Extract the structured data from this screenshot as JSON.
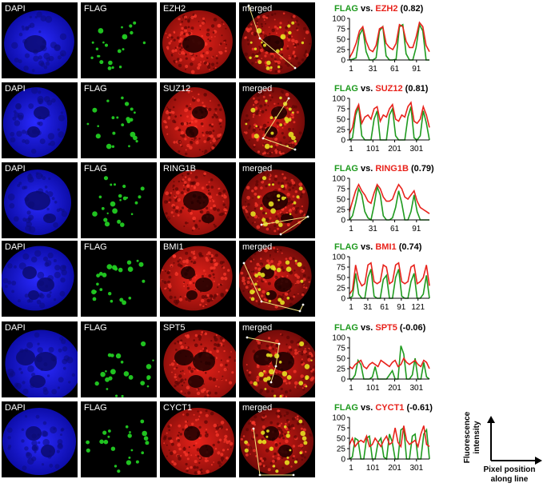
{
  "colors": {
    "dapi": "#1616ee",
    "flag": "#22cc22",
    "red": "#e21a12",
    "flag_title": "#1e9a1e",
    "red_title": "#e8231c",
    "merged_spot": "#e6e020"
  },
  "rows": [
    {
      "dapi": "DAPI",
      "flag": "FLAG",
      "marker": "EZH2",
      "merged": "merged",
      "title_flag": "FLAG",
      "title_vs": " vs. ",
      "title_marker": "EZH2",
      "title_corr": " (0.82)",
      "xticks": [
        "1",
        "31",
        "61",
        "91"
      ],
      "yticks": [
        "0",
        "25",
        "50",
        "75",
        "100"
      ]
    },
    {
      "dapi": "DAPI",
      "flag": "FLAG",
      "marker": "SUZ12",
      "merged": "merged",
      "title_flag": "FLAG",
      "title_vs": " vs. ",
      "title_marker": "SUZ12",
      "title_corr": " (0.81)",
      "xticks": [
        "1",
        "101",
        "201",
        "301"
      ],
      "yticks": [
        "0",
        "25",
        "50",
        "75",
        "100"
      ]
    },
    {
      "dapi": "DAPI",
      "flag": "FLAG",
      "marker": "RING1B",
      "merged": "merged",
      "title_flag": "FLAG",
      "title_vs": " vs. ",
      "title_marker": "RING1B",
      "title_corr": " (0.79)",
      "xticks": [
        "1",
        "31",
        "61",
        "91"
      ],
      "yticks": [
        "0",
        "25",
        "50",
        "75",
        "100"
      ]
    },
    {
      "dapi": "DAPI",
      "flag": "FLAG",
      "marker": "BMI1",
      "merged": "merged",
      "title_flag": "FLAG",
      "title_vs": " vs. ",
      "title_marker": "BMI1",
      "title_corr": " (0.74)",
      "xticks": [
        "1",
        "31",
        "61",
        "91",
        "121"
      ],
      "yticks": [
        "0",
        "25",
        "50",
        "75",
        "100"
      ]
    },
    {
      "dapi": "DAPI",
      "flag": "FLAG",
      "marker": "SPT5",
      "merged": "merged",
      "title_flag": "FLAG",
      "title_vs": " vs. ",
      "title_marker": "SPT5",
      "title_corr": " (-0.06)",
      "xticks": [
        "1",
        "101",
        "201",
        "301"
      ],
      "yticks": [
        "0",
        "25",
        "50",
        "75",
        "100"
      ]
    },
    {
      "dapi": "DAPI",
      "flag": "FLAG",
      "marker": "CYCT1",
      "merged": "merged",
      "title_flag": "FLAG",
      "title_vs": " vs. ",
      "title_marker": "CYCT1",
      "title_corr": " (-0.61)",
      "xticks": [
        "1",
        "101",
        "201",
        "301"
      ],
      "yticks": [
        "0",
        "25",
        "50",
        "75",
        "100"
      ]
    }
  ],
  "legend": {
    "y_label_1": "Fluorescence",
    "y_label_2": "intensity",
    "x_label_1": "Pixel position",
    "x_label_2": "along line"
  },
  "chart_data": [
    {
      "type": "line",
      "ylim": [
        0,
        100
      ],
      "series": [
        {
          "name": "FLAG",
          "values": [
            0,
            2,
            5,
            60,
            75,
            20,
            0,
            0,
            5,
            70,
            80,
            10,
            0,
            0,
            2,
            80,
            85,
            15,
            0,
            0,
            30,
            85,
            70,
            0,
            0
          ]
        },
        {
          "name": "EZH2",
          "values": [
            5,
            20,
            40,
            70,
            80,
            45,
            25,
            20,
            35,
            75,
            80,
            40,
            30,
            25,
            40,
            85,
            80,
            45,
            30,
            30,
            55,
            90,
            80,
            35,
            20
          ]
        }
      ]
    },
    {
      "type": "line",
      "ylim": [
        0,
        100
      ],
      "series": [
        {
          "name": "FLAG",
          "values": [
            0,
            5,
            60,
            80,
            10,
            0,
            0,
            0,
            50,
            70,
            0,
            0,
            0,
            60,
            75,
            10,
            0,
            0,
            0,
            55,
            80,
            5,
            0,
            10,
            70,
            40,
            0
          ]
        },
        {
          "name": "SUZ12",
          "values": [
            15,
            30,
            70,
            85,
            40,
            55,
            60,
            50,
            75,
            80,
            45,
            60,
            55,
            75,
            85,
            50,
            45,
            60,
            55,
            80,
            90,
            45,
            40,
            50,
            80,
            60,
            30
          ]
        }
      ]
    },
    {
      "type": "line",
      "ylim": [
        0,
        100
      ],
      "series": [
        {
          "name": "FLAG",
          "values": [
            0,
            10,
            40,
            75,
            60,
            20,
            5,
            0,
            35,
            80,
            60,
            10,
            0,
            0,
            5,
            30,
            70,
            40,
            0,
            0,
            20,
            60,
            20,
            0,
            0,
            0,
            0
          ]
        },
        {
          "name": "RING1B",
          "values": [
            20,
            45,
            70,
            85,
            70,
            60,
            45,
            40,
            65,
            85,
            75,
            55,
            45,
            45,
            50,
            70,
            85,
            75,
            55,
            50,
            60,
            70,
            45,
            30,
            25,
            20,
            15
          ]
        }
      ]
    },
    {
      "type": "line",
      "ylim": [
        0,
        100
      ],
      "series": [
        {
          "name": "FLAG",
          "values": [
            0,
            5,
            60,
            10,
            0,
            0,
            50,
            70,
            5,
            0,
            0,
            45,
            55,
            0,
            0,
            50,
            70,
            5,
            0,
            0,
            40,
            60,
            0,
            0,
            10,
            55,
            0
          ]
        },
        {
          "name": "BMI1",
          "values": [
            10,
            20,
            80,
            45,
            30,
            35,
            80,
            85,
            40,
            35,
            40,
            80,
            75,
            35,
            40,
            80,
            85,
            40,
            35,
            40,
            75,
            80,
            35,
            40,
            50,
            80,
            30
          ]
        }
      ]
    },
    {
      "type": "line",
      "ylim": [
        0,
        100
      ],
      "series": [
        {
          "name": "FLAG",
          "values": [
            0,
            0,
            10,
            45,
            35,
            0,
            0,
            0,
            5,
            30,
            0,
            0,
            0,
            0,
            10,
            20,
            0,
            0,
            80,
            60,
            0,
            0,
            10,
            50,
            0,
            0,
            40,
            5,
            0
          ]
        },
        {
          "name": "SPT5",
          "values": [
            30,
            25,
            35,
            40,
            45,
            30,
            25,
            35,
            40,
            35,
            30,
            45,
            40,
            35,
            30,
            40,
            45,
            30,
            35,
            50,
            40,
            35,
            40,
            45,
            35,
            30,
            45,
            40,
            25
          ]
        }
      ]
    },
    {
      "type": "line",
      "ylim": [
        0,
        100
      ],
      "series": [
        {
          "name": "FLAG",
          "values": [
            0,
            5,
            50,
            45,
            0,
            0,
            50,
            55,
            0,
            0,
            40,
            50,
            5,
            0,
            60,
            40,
            0,
            0,
            70,
            75,
            0,
            0,
            55,
            60,
            0,
            0,
            60,
            70,
            0
          ]
        },
        {
          "name": "CYCT1",
          "values": [
            35,
            50,
            30,
            40,
            45,
            40,
            55,
            30,
            35,
            50,
            40,
            30,
            45,
            55,
            35,
            40,
            75,
            40,
            30,
            80,
            45,
            35,
            40,
            45,
            30,
            60,
            80,
            35,
            30
          ]
        }
      ]
    }
  ]
}
